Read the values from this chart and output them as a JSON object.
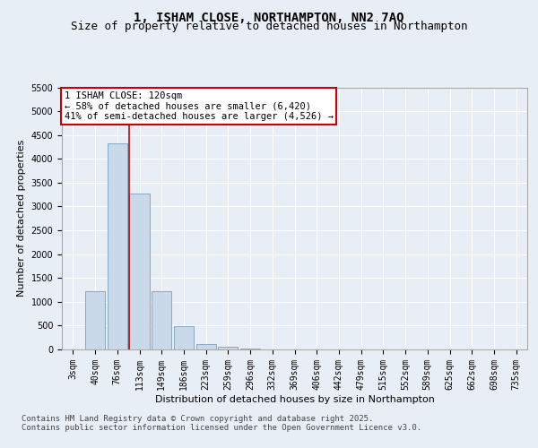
{
  "title_line1": "1, ISHAM CLOSE, NORTHAMPTON, NN2 7AQ",
  "title_line2": "Size of property relative to detached houses in Northampton",
  "xlabel": "Distribution of detached houses by size in Northampton",
  "ylabel": "Number of detached properties",
  "footer_line1": "Contains HM Land Registry data © Crown copyright and database right 2025.",
  "footer_line2": "Contains public sector information licensed under the Open Government Licence v3.0.",
  "annotation_line1": "1 ISHAM CLOSE: 120sqm",
  "annotation_line2": "← 58% of detached houses are smaller (6,420)",
  "annotation_line3": "41% of semi-detached houses are larger (4,526) →",
  "categories": [
    "3sqm",
    "40sqm",
    "76sqm",
    "113sqm",
    "149sqm",
    "186sqm",
    "223sqm",
    "259sqm",
    "296sqm",
    "332sqm",
    "369sqm",
    "406sqm",
    "442sqm",
    "479sqm",
    "515sqm",
    "552sqm",
    "589sqm",
    "625sqm",
    "662sqm",
    "698sqm",
    "735sqm"
  ],
  "values": [
    0,
    1220,
    4320,
    3270,
    1220,
    480,
    120,
    60,
    20,
    5,
    0,
    0,
    0,
    0,
    0,
    0,
    0,
    0,
    0,
    0,
    0
  ],
  "bar_color": "#c9d9e9",
  "bar_edge_color": "#7aa0be",
  "vline_color": "#cc0000",
  "vline_bin_index": 3,
  "ylim": [
    0,
    5500
  ],
  "yticks": [
    0,
    500,
    1000,
    1500,
    2000,
    2500,
    3000,
    3500,
    4000,
    4500,
    5000,
    5500
  ],
  "background_color": "#e8eef5",
  "plot_bg_color": "#e8eef5",
  "annotation_box_color": "#ffffff",
  "annotation_box_edge": "#cc0000",
  "grid_color": "#ffffff",
  "title_fontsize": 10,
  "subtitle_fontsize": 9,
  "footer_fontsize": 6.5,
  "axis_label_fontsize": 8,
  "tick_fontsize": 7,
  "annotation_fontsize": 7.5
}
